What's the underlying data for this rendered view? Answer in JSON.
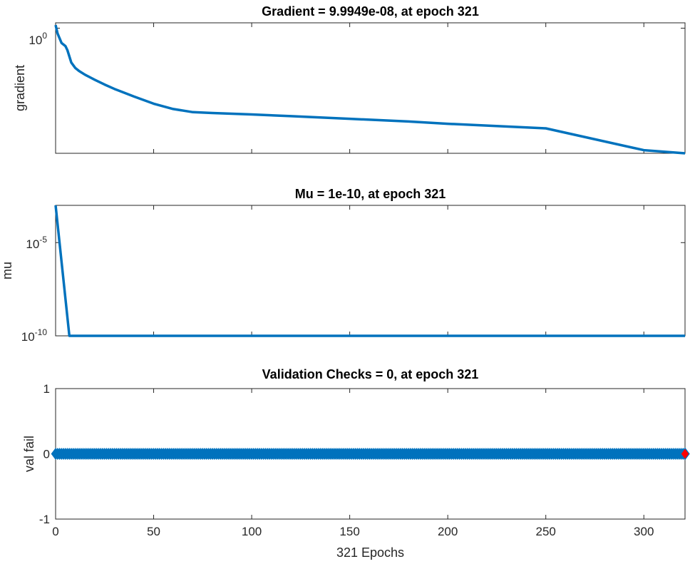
{
  "chart_data": [
    {
      "type": "line",
      "title": "Gradient = 9.9949e-08, at epoch 321",
      "xlabel": "",
      "ylabel": "gradient",
      "yscale": "log",
      "xlim": [
        0,
        321
      ],
      "ylim": [
        1e-07,
        2
      ],
      "ytick_labels": [
        {
          "base": "10",
          "exp": "0",
          "value": 1
        }
      ],
      "line_color": "#0072BD",
      "grid": false,
      "series": [
        {
          "x": [
            0,
            1,
            3,
            5,
            6,
            8,
            10,
            12,
            15,
            20,
            25,
            30,
            40,
            50,
            60,
            70,
            80,
            100,
            120,
            150,
            180,
            200,
            250,
            300,
            321
          ],
          "y": [
            1.5,
            0.5,
            0.15,
            0.1,
            0.06,
            0.012,
            0.006,
            0.004,
            0.0025,
            0.0013,
            0.0007,
            0.0004,
            0.00015,
            6e-05,
            3e-05,
            2e-05,
            1.8e-05,
            1.5e-05,
            1.2e-05,
            8.5e-06,
            6e-06,
            4.5e-06,
            2.5e-06,
            1.5e-07,
            9.9949e-08
          ]
        }
      ]
    },
    {
      "type": "line",
      "title": "Mu = 1e-10, at epoch 321",
      "xlabel": "",
      "ylabel": "mu",
      "yscale": "log",
      "xlim": [
        0,
        321
      ],
      "ylim": [
        1e-10,
        0.001
      ],
      "ytick_labels": [
        {
          "base": "10",
          "exp": "-5",
          "value": 1e-05
        },
        {
          "base": "10",
          "exp": "-10",
          "value": 1e-10
        }
      ],
      "line_color": "#0072BD",
      "grid": false,
      "series": [
        {
          "x": [
            0,
            7,
            321
          ],
          "y": [
            0.001,
            1e-10,
            1e-10
          ]
        }
      ]
    },
    {
      "type": "scatter",
      "title": "Validation Checks = 0, at epoch 321",
      "xlabel": "321 Epochs",
      "ylabel": "val fail",
      "xlim": [
        0,
        321
      ],
      "ylim": [
        -1,
        1
      ],
      "xticks": [
        0,
        50,
        100,
        150,
        200,
        250,
        300
      ],
      "yticks": [
        -1,
        0,
        1
      ],
      "marker": "diamond",
      "marker_color": "#0072BD",
      "highlight": {
        "x": 321,
        "y": 0,
        "color": "#FF0000"
      },
      "grid": false,
      "series": [
        {
          "x_start": 0,
          "x_end": 321,
          "x_step": 1,
          "y": 0
        }
      ]
    }
  ]
}
